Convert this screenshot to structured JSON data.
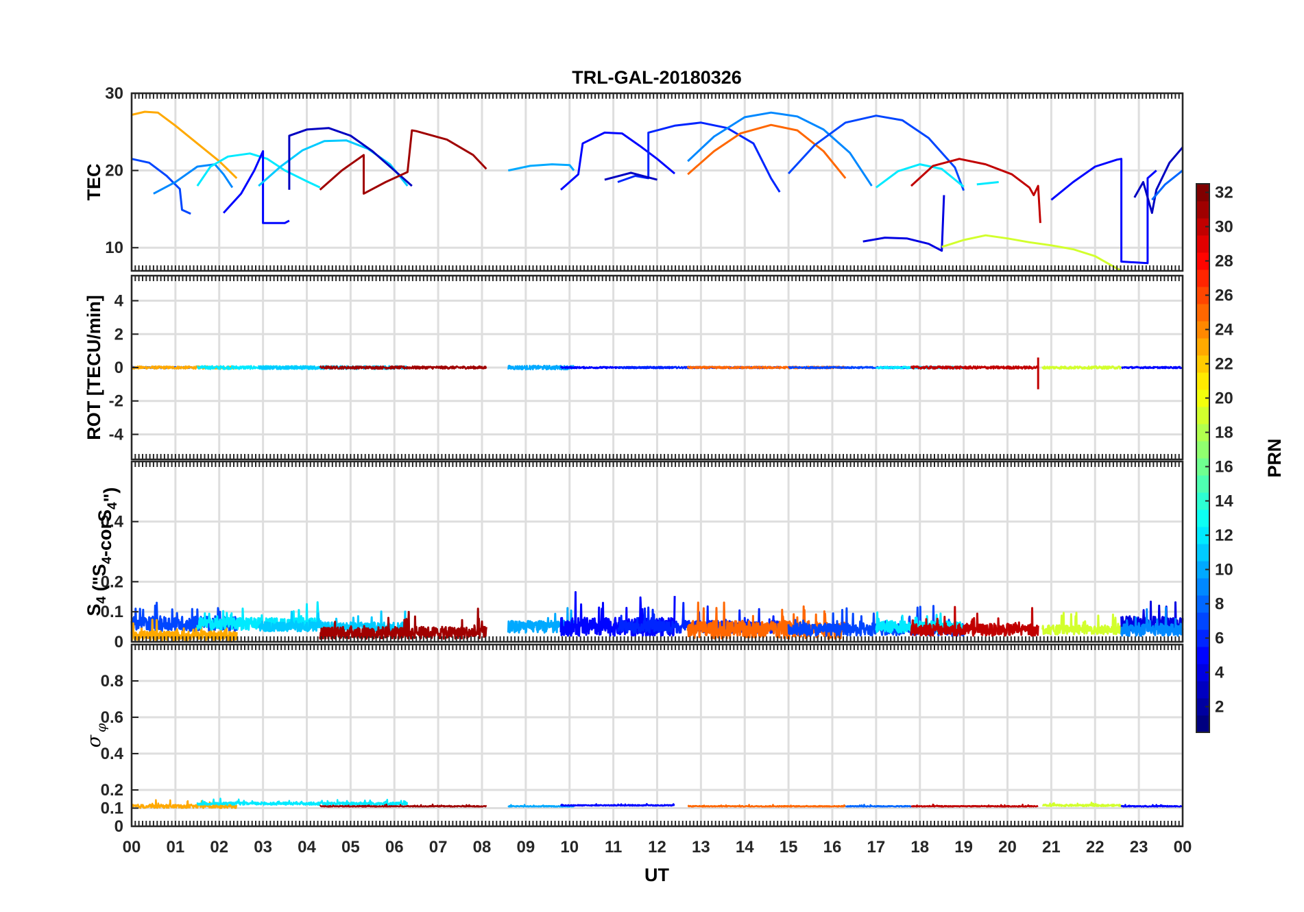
{
  "chart_data": {
    "type": "line",
    "title": "TRL-GAL-20180326",
    "xlabel": "UT",
    "xlim": [
      0,
      24
    ],
    "x_ticks": [
      "00",
      "01",
      "02",
      "03",
      "04",
      "05",
      "06",
      "07",
      "08",
      "09",
      "10",
      "11",
      "12",
      "13",
      "14",
      "15",
      "16",
      "17",
      "18",
      "19",
      "20",
      "21",
      "22",
      "23",
      "00"
    ],
    "colorbar": {
      "label": "PRN",
      "range": [
        1,
        32
      ],
      "ticks": [
        "2",
        "4",
        "6",
        "8",
        "10",
        "12",
        "14",
        "16",
        "18",
        "20",
        "22",
        "24",
        "26",
        "28",
        "30",
        "32"
      ]
    },
    "panels": [
      {
        "name": "tec",
        "ylabel": "TEC",
        "ylim": [
          7,
          30
        ],
        "y_ticks": [
          "10",
          "20",
          "30"
        ],
        "series": [
          {
            "prn": 23,
            "x": [
              0.0,
              0.3,
              0.6,
              1.0,
              1.5,
              2.0,
              2.4
            ],
            "y": [
              27.2,
              27.6,
              27.5,
              25.8,
              23.5,
              21.2,
              19.0
            ]
          },
          {
            "prn": 7,
            "x": [
              0.0,
              0.4,
              0.8,
              1.1,
              1.15,
              1.35
            ],
            "y": [
              21.5,
              21.0,
              19.3,
              17.6,
              14.9,
              14.4
            ]
          },
          {
            "prn": 9,
            "x": [
              0.5,
              1.0,
              1.5,
              1.9,
              2.1,
              2.3
            ],
            "y": [
              17.0,
              18.5,
              20.5,
              20.8,
              19.5,
              17.8
            ]
          },
          {
            "prn": 12,
            "x": [
              1.5,
              1.8,
              2.2,
              2.7,
              3.1,
              3.5,
              4.0,
              4.3
            ],
            "y": [
              18.0,
              20.5,
              21.8,
              22.2,
              21.5,
              20.0,
              18.6,
              17.8
            ]
          },
          {
            "prn": 5,
            "x": [
              2.1,
              2.5,
              2.8,
              3.0,
              3.0,
              3.5,
              3.6
            ],
            "y": [
              14.5,
              17.0,
              20.0,
              22.5,
              13.2,
              13.2,
              13.5
            ]
          },
          {
            "prn": 11,
            "x": [
              2.9,
              3.4,
              3.9,
              4.4,
              4.9,
              5.4,
              5.9,
              6.3
            ],
            "y": [
              18.0,
              20.5,
              22.6,
              23.8,
              23.9,
              22.8,
              20.8,
              18.0
            ]
          },
          {
            "prn": 3,
            "x": [
              3.6,
              3.6,
              4.0,
              4.5,
              5.0,
              5.5,
              6.0,
              6.4
            ],
            "y": [
              17.5,
              24.5,
              25.3,
              25.5,
              24.5,
              22.5,
              20.0,
              18.0
            ]
          },
          {
            "prn": 31,
            "x": [
              4.3,
              4.8,
              5.3,
              5.3,
              5.8,
              6.3,
              6.4,
              6.5,
              7.2,
              7.8,
              8.1
            ],
            "y": [
              17.5,
              20.0,
              22.0,
              17.0,
              18.5,
              19.8,
              25.2,
              25.1,
              24.0,
              22.0,
              20.2
            ]
          },
          {
            "prn": 10,
            "x": [
              8.6,
              9.1,
              9.6,
              10.0,
              10.1
            ],
            "y": [
              20.0,
              20.6,
              20.8,
              20.7,
              20.0
            ]
          },
          {
            "prn": 5,
            "x": [
              9.8,
              10.2,
              10.3,
              10.8,
              11.2,
              11.6,
              12.0,
              12.4
            ],
            "y": [
              17.5,
              19.5,
              23.5,
              24.9,
              24.8,
              23.2,
              21.5,
              19.6
            ]
          },
          {
            "prn": 6,
            "x": [
              11.1,
              11.5,
              11.8,
              11.8,
              12.4,
              13.0,
              13.6,
              14.2,
              14.6,
              14.8
            ],
            "y": [
              18.5,
              19.3,
              19.0,
              24.9,
              25.8,
              26.2,
              25.5,
              23.5,
              19.0,
              17.2
            ]
          },
          {
            "prn": 3,
            "x": [
              10.8,
              11.4,
              12.0
            ],
            "y": [
              18.8,
              19.7,
              18.8
            ]
          },
          {
            "prn": 25,
            "x": [
              12.7,
              13.3,
              13.9,
              14.6,
              15.2,
              15.8,
              16.3
            ],
            "y": [
              19.5,
              22.5,
              24.8,
              25.9,
              25.2,
              22.5,
              19.0
            ]
          },
          {
            "prn": 9,
            "x": [
              12.7,
              13.3,
              14.0,
              14.6,
              15.2,
              15.8,
              16.4,
              16.9
            ],
            "y": [
              21.2,
              24.4,
              26.9,
              27.5,
              27.0,
              25.3,
              22.3,
              18.0
            ]
          },
          {
            "prn": 7,
            "x": [
              15.0,
              15.6,
              16.3,
              17.0,
              17.6,
              18.2,
              18.8,
              19.0
            ],
            "y": [
              19.6,
              23.3,
              26.2,
              27.1,
              26.5,
              24.2,
              20.4,
              17.4
            ]
          },
          {
            "prn": 12,
            "x": [
              17.0,
              17.5,
              18.0,
              18.5,
              19.0
            ],
            "y": [
              17.8,
              19.9,
              20.8,
              20.2,
              17.9
            ]
          },
          {
            "prn": 12,
            "x": [
              19.3,
              19.8
            ],
            "y": [
              18.2,
              18.5
            ]
          },
          {
            "prn": 30,
            "x": [
              17.8,
              18.3,
              18.9,
              19.5,
              20.1,
              20.5,
              20.6,
              20.7,
              20.75
            ],
            "y": [
              18.0,
              20.6,
              21.5,
              20.8,
              19.5,
              17.8,
              16.8,
              18.0,
              13.2
            ]
          },
          {
            "prn": 4,
            "x": [
              16.7,
              17.2,
              17.7,
              18.2,
              18.5,
              18.55
            ],
            "y": [
              10.8,
              11.3,
              11.2,
              10.5,
              9.6,
              16.8
            ]
          },
          {
            "prn": 19,
            "x": [
              18.5,
              19.0,
              19.5,
              20.0,
              20.5,
              21.0,
              21.5,
              22.0,
              22.5,
              22.6
            ],
            "y": [
              10.1,
              11.0,
              11.6,
              11.2,
              10.7,
              10.3,
              9.8,
              8.9,
              7.3,
              7.0
            ]
          },
          {
            "prn": 5,
            "x": [
              21.0,
              21.5,
              22.0,
              22.5,
              22.6,
              22.6,
              23.2,
              23.2,
              23.4
            ],
            "y": [
              16.2,
              18.5,
              20.5,
              21.4,
              21.5,
              8.2,
              8.0,
              19.0,
              20.0
            ]
          },
          {
            "prn": 3,
            "x": [
              22.9,
              23.1,
              23.3,
              23.4,
              23.7,
              24.0
            ],
            "y": [
              16.5,
              18.5,
              14.5,
              17.5,
              21.0,
              23.0
            ]
          },
          {
            "prn": 8,
            "x": [
              23.3,
              23.6,
              24.0
            ],
            "y": [
              16.2,
              18.2,
              20.0
            ]
          }
        ]
      },
      {
        "name": "rot",
        "ylabel": "ROT [TECU/min]",
        "ylim": [
          -5.5,
          5.5
        ],
        "y_ticks": [
          "4",
          "2",
          "0",
          "-2",
          "-4"
        ],
        "segments": [
          {
            "prn": 7,
            "x0": 0.0,
            "x1": 1.4,
            "noise": 0.05
          },
          {
            "prn": 23,
            "x0": 0.0,
            "x1": 2.4,
            "noise": 0.08
          },
          {
            "prn": 12,
            "x0": 1.5,
            "x1": 4.3,
            "noise": 0.1
          },
          {
            "prn": 11,
            "x0": 2.9,
            "x1": 6.3,
            "noise": 0.1
          },
          {
            "prn": 31,
            "x0": 4.3,
            "x1": 8.1,
            "noise": 0.08
          },
          {
            "prn": 10,
            "x0": 8.6,
            "x1": 10.1,
            "noise": 0.12
          },
          {
            "prn": 5,
            "x0": 9.8,
            "x1": 12.4,
            "noise": 0.05
          },
          {
            "prn": 6,
            "x0": 11.1,
            "x1": 14.8,
            "noise": 0.05
          },
          {
            "prn": 25,
            "x0": 12.7,
            "x1": 16.3,
            "noise": 0.06
          },
          {
            "prn": 7,
            "x0": 15.0,
            "x1": 19.0,
            "noise": 0.05
          },
          {
            "prn": 12,
            "x0": 17.0,
            "x1": 19.0,
            "noise": 0.06
          },
          {
            "prn": 30,
            "x0": 17.8,
            "x1": 20.7,
            "noise": 0.08
          },
          {
            "prn": 19,
            "x0": 20.8,
            "x1": 22.6,
            "noise": 0.08
          },
          {
            "prn": 5,
            "x0": 22.6,
            "x1": 24.0,
            "noise": 0.05
          }
        ],
        "spike": {
          "prn": 30,
          "x": 20.7,
          "min": -1.3,
          "max": 0.6
        }
      },
      {
        "name": "s4",
        "ylabel": "S4 (\"S4-corS4\")",
        "ylabel_main": "S",
        "ylabel_sub": "4",
        "ylabel_rest1": " (\"S",
        "ylabel_rest2": "-corS",
        "ylabel_rest3": "\")",
        "ylim": [
          0,
          0.6
        ],
        "y_ticks": [
          "0",
          "0.1",
          "0.2",
          "0.4"
        ],
        "segments": [
          {
            "prn": 7,
            "x0": 0.0,
            "x1": 2.4,
            "base": 0.06,
            "amp": 0.05
          },
          {
            "prn": 23,
            "x0": 0.0,
            "x1": 2.4,
            "base": 0.02,
            "amp": 0.03
          },
          {
            "prn": 12,
            "x0": 1.5,
            "x1": 4.3,
            "base": 0.06,
            "amp": 0.04
          },
          {
            "prn": 11,
            "x0": 2.9,
            "x1": 6.3,
            "base": 0.05,
            "amp": 0.03
          },
          {
            "prn": 31,
            "x0": 4.3,
            "x1": 8.1,
            "base": 0.03,
            "amp": 0.04
          },
          {
            "prn": 10,
            "x0": 8.6,
            "x1": 10.1,
            "base": 0.05,
            "amp": 0.04
          },
          {
            "prn": 5,
            "x0": 9.8,
            "x1": 12.4,
            "base": 0.05,
            "amp": 0.06
          },
          {
            "prn": 6,
            "x0": 11.1,
            "x1": 14.8,
            "base": 0.05,
            "amp": 0.04
          },
          {
            "prn": 25,
            "x0": 12.7,
            "x1": 16.3,
            "base": 0.04,
            "amp": 0.06
          },
          {
            "prn": 7,
            "x0": 15.0,
            "x1": 19.0,
            "base": 0.04,
            "amp": 0.04
          },
          {
            "prn": 12,
            "x0": 17.0,
            "x1": 19.0,
            "base": 0.05,
            "amp": 0.04
          },
          {
            "prn": 30,
            "x0": 17.8,
            "x1": 20.7,
            "base": 0.04,
            "amp": 0.04
          },
          {
            "prn": 19,
            "x0": 20.8,
            "x1": 22.6,
            "base": 0.04,
            "amp": 0.03
          },
          {
            "prn": 4,
            "x0": 22.6,
            "x1": 24.0,
            "base": 0.06,
            "amp": 0.05
          },
          {
            "prn": 9,
            "x0": 22.6,
            "x1": 24.0,
            "base": 0.04,
            "amp": 0.04
          }
        ]
      },
      {
        "name": "sigma",
        "ylabel": "σ φ",
        "ylabel_main": "σ",
        "ylabel_sub": "φ",
        "ylim": [
          0,
          1
        ],
        "y_ticks": [
          "0",
          "0.1",
          "0.2",
          "0.4",
          "0.6",
          "0.8"
        ],
        "segments": [
          {
            "prn": 23,
            "x0": 0.0,
            "x1": 2.4,
            "base": 0.11,
            "amp": 0.02
          },
          {
            "prn": 12,
            "x0": 1.5,
            "x1": 6.3,
            "base": 0.125,
            "amp": 0.015
          },
          {
            "prn": 31,
            "x0": 4.3,
            "x1": 8.1,
            "base": 0.11,
            "amp": 0.005
          },
          {
            "prn": 10,
            "x0": 8.6,
            "x1": 10.1,
            "base": 0.11,
            "amp": 0.005
          },
          {
            "prn": 5,
            "x0": 9.8,
            "x1": 12.4,
            "base": 0.115,
            "amp": 0.005
          },
          {
            "prn": 25,
            "x0": 12.7,
            "x1": 16.3,
            "base": 0.11,
            "amp": 0.005
          },
          {
            "prn": 8,
            "x0": 16.3,
            "x1": 17.8,
            "base": 0.11,
            "amp": 0.005
          },
          {
            "prn": 30,
            "x0": 17.8,
            "x1": 20.7,
            "base": 0.11,
            "amp": 0.005
          },
          {
            "prn": 19,
            "x0": 20.8,
            "x1": 22.6,
            "base": 0.115,
            "amp": 0.01
          },
          {
            "prn": 5,
            "x0": 22.6,
            "x1": 24.0,
            "base": 0.11,
            "amp": 0.005
          }
        ]
      }
    ]
  }
}
